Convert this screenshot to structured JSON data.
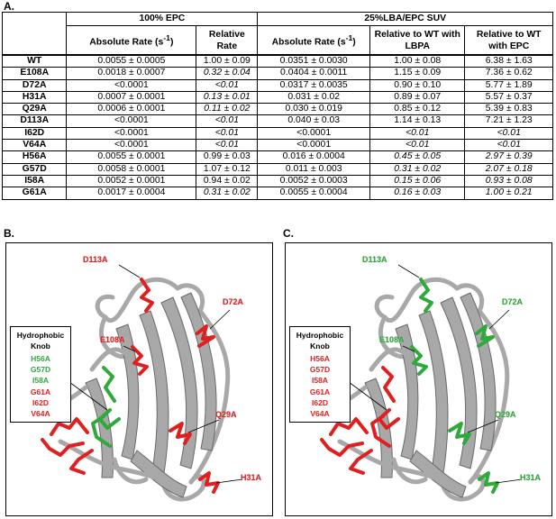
{
  "panels": {
    "a": "A.",
    "b": "B.",
    "c": "C."
  },
  "table": {
    "group1": "100% EPC",
    "group2": "25%LBA/EPC SUV",
    "col1": "Absolute Rate (s",
    "col1_sup": "-1",
    "col1_end": ")",
    "col2": "Relative Rate",
    "col3": "Absolute Rate (s",
    "col3_sup": "-1",
    "col3_end": ")",
    "col4": "Relative to WT with LBPA",
    "col5": "Relative to WT with EPC",
    "rows": [
      {
        "name": "WT",
        "c1": "0.0055 ± 0.0005",
        "c2": "1.00 ± 0.09",
        "c3": "0.0351 ± 0.0030",
        "c4": "1.00 ± 0.08",
        "c5": "6.38 ± 1.63"
      },
      {
        "name": "E108A",
        "c1": "0.0018 ± 0.0007",
        "c2": "0.32 ± 0.04",
        "c3": "0.0404 ± 0.0011",
        "c4": "1.15 ± 0.09",
        "c5": "7.36 ± 0.62"
      },
      {
        "name": "D72A",
        "c1": "<0.0001",
        "c2": "<0.01",
        "c3": "0.0317 ± 0.0035",
        "c4": "0.90 ± 0.10",
        "c5": "5.77 ± 1.89"
      },
      {
        "name": "H31A",
        "c1": "0.0007 ± 0.0001",
        "c2": "0.13 ± 0.01",
        "c3": "0.031 ± 0.02",
        "c4": "0.89 ± 0.07",
        "c5": "5.57 ± 0.37"
      },
      {
        "name": "Q29A",
        "c1": "0.0006 ± 0.0001",
        "c2": "0.11 ± 0.02",
        "c3": "0.030 ± 0.019",
        "c4": "0.85 ± 0.12",
        "c5": "5.39 ± 0.83"
      },
      {
        "name": "D113A",
        "c1": "<0.0001",
        "c2": "<0.01",
        "c3": "0.040 ± 0.03",
        "c4": "1.14 ± 0.13",
        "c5": "7.21 ± 1.23"
      },
      {
        "name": "I62D",
        "c1": "<0.0001",
        "c2": "<0.01",
        "c3": "<0.0001",
        "c4": "<0.01",
        "c5": "<0.01"
      },
      {
        "name": "V64A",
        "c1": "<0.0001",
        "c2": "<0.01",
        "c3": "<0.0001",
        "c4": "<0.01",
        "c5": "<0.01"
      },
      {
        "name": "H56A",
        "c1": "0.0055 ± 0.0001",
        "c2": "0.99 ± 0.03",
        "c3": "0.016 ± 0.0004",
        "c4": "0.45 ± 0.05",
        "c5": "2.97 ± 0.39"
      },
      {
        "name": "G57D",
        "c1": "0.0058 ± 0.0001",
        "c2": "1.07 ± 0.12",
        "c3": "0.011 ± 0.003",
        "c4": "0.31 ± 0.02",
        "c5": "2.07 ± 0.18"
      },
      {
        "name": "I58A",
        "c1": "0.0052 ± 0.0001",
        "c2": "0.94 ± 0.02",
        "c3": "0.0052 ± 0.0003",
        "c4": "0.15 ± 0.06",
        "c5": "0.93 ± 0.08"
      },
      {
        "name": "G61A",
        "c1": "0.0017 ± 0.0004",
        "c2": "0.31 ± 0.02",
        "c3": "0.0055 ± 0.0004",
        "c4": "0.16 ± 0.03",
        "c5": "1.00 ± 0.21"
      }
    ]
  },
  "figB": {
    "legend_title_1": "Hydrophobic",
    "legend_title_2": "Knob",
    "legend": [
      {
        "label": "H56A",
        "color": "#2eaa3a"
      },
      {
        "label": "G57D",
        "color": "#2eaa3a"
      },
      {
        "label": "I58A",
        "color": "#2eaa3a"
      },
      {
        "label": "G61A",
        "color": "#e02020"
      },
      {
        "label": "I62D",
        "color": "#e02020"
      },
      {
        "label": "V64A",
        "color": "#e02020"
      }
    ],
    "mutants": [
      {
        "label": "D113A",
        "color": "#e02020"
      },
      {
        "label": "D72A",
        "color": "#e02020"
      },
      {
        "label": "E108A",
        "color": "#e02020"
      },
      {
        "label": "Q29A",
        "color": "#e02020"
      },
      {
        "label": "H31A",
        "color": "#e02020"
      }
    ]
  },
  "figC": {
    "legend_title_1": "Hydrophobic",
    "legend_title_2": "Knob",
    "legend": [
      {
        "label": "H56A",
        "color": "#e02020"
      },
      {
        "label": "G57D",
        "color": "#e02020"
      },
      {
        "label": "I58A",
        "color": "#e02020"
      },
      {
        "label": "G61A",
        "color": "#e02020"
      },
      {
        "label": "I62D",
        "color": "#e02020"
      },
      {
        "label": "V64A",
        "color": "#e02020"
      }
    ],
    "mutants": [
      {
        "label": "D113A",
        "color": "#2eaa3a"
      },
      {
        "label": "D72A",
        "color": "#2eaa3a"
      },
      {
        "label": "E108A",
        "color": "#2eaa3a"
      },
      {
        "label": "Q29A",
        "color": "#2eaa3a"
      },
      {
        "label": "H31A",
        "color": "#2eaa3a"
      }
    ]
  },
  "colors": {
    "red": "#e02020",
    "green": "#2eaa3a",
    "ribbon": "#a8a8a8"
  }
}
